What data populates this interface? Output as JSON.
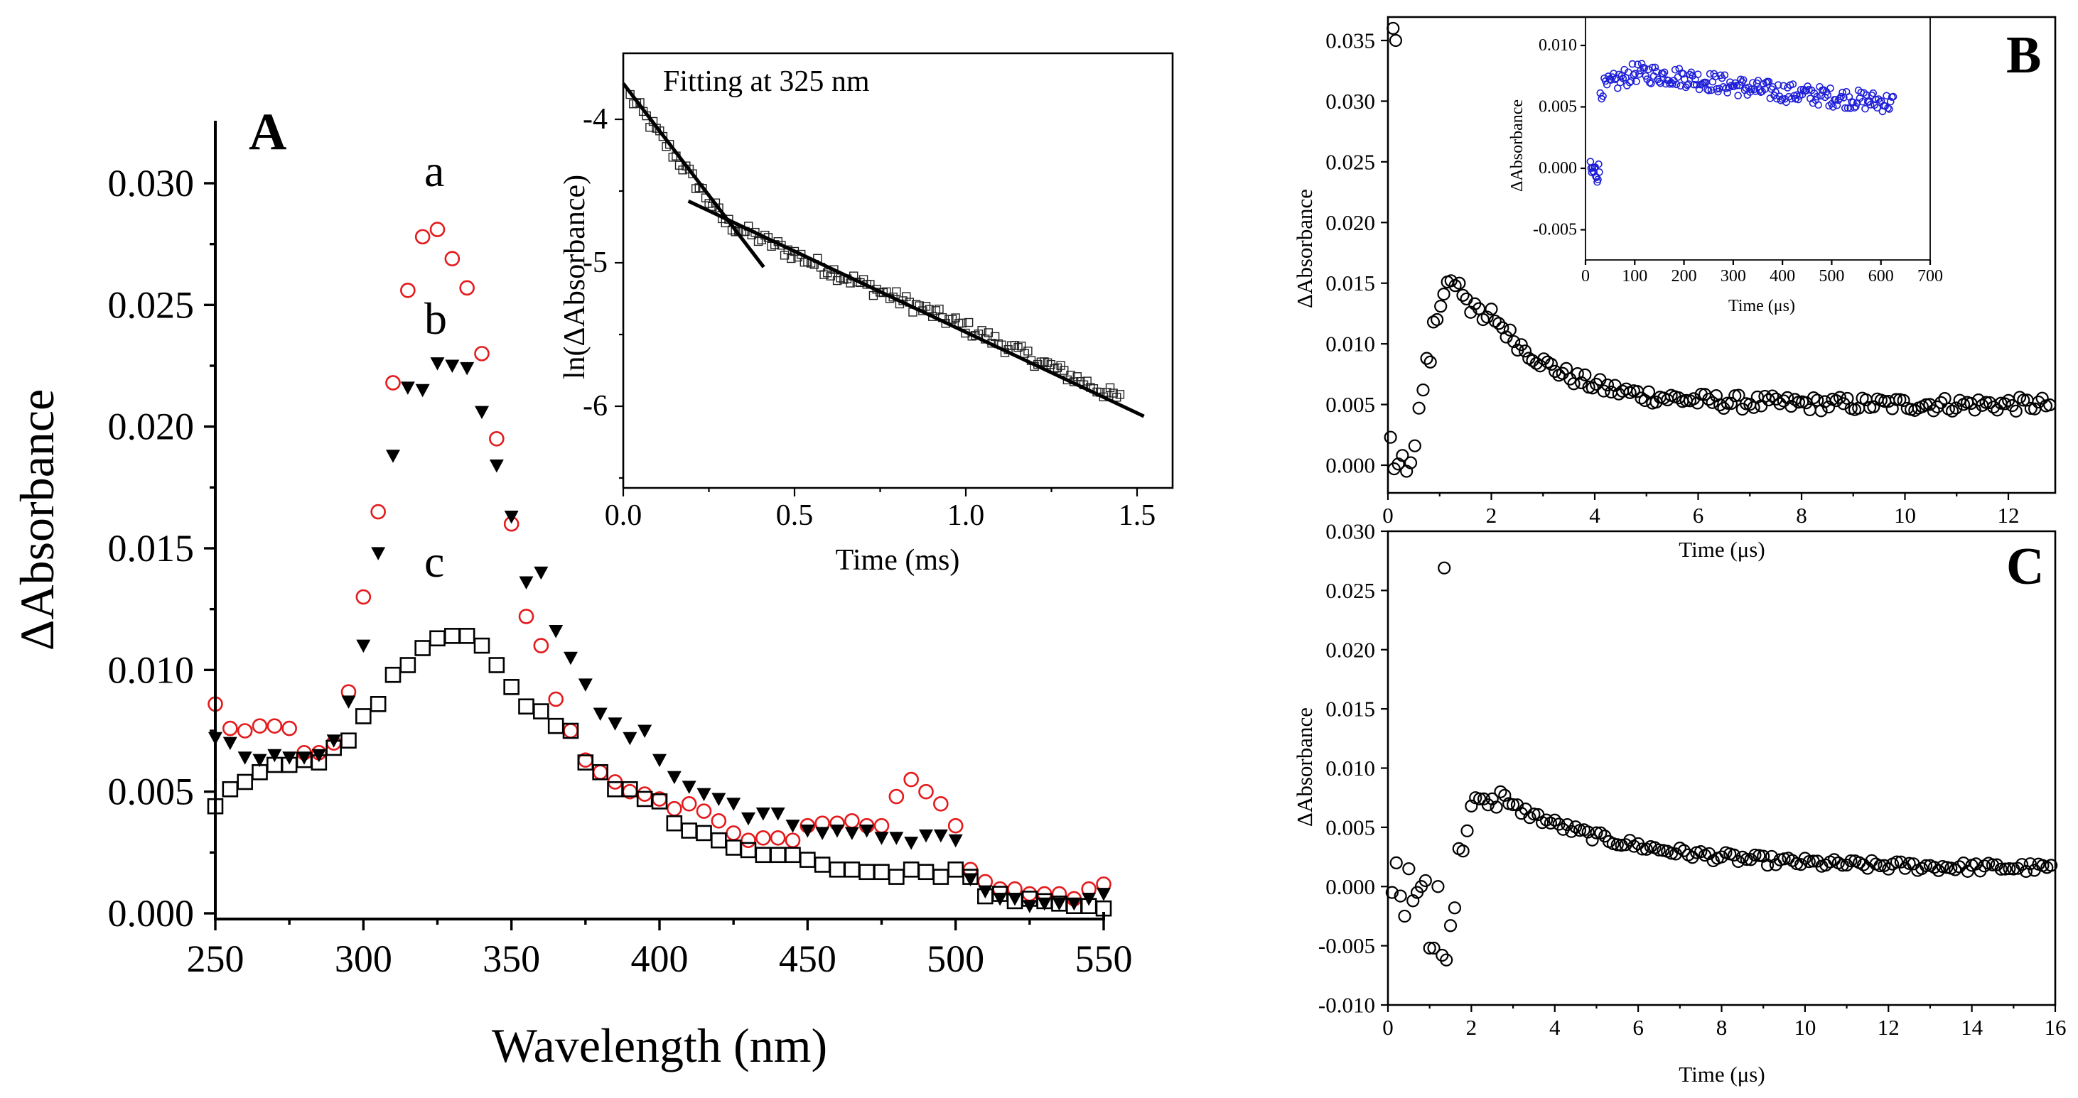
{
  "chart_data": [
    {
      "panel": "A",
      "type": "scatter",
      "xlabel": "Wavelength (nm)",
      "ylabel": "ΔAbsorbance",
      "xlim": [
        250,
        550
      ],
      "ylim": [
        -0.0005,
        0.0325
      ],
      "xticks": [
        250,
        300,
        350,
        400,
        450,
        500,
        550
      ],
      "yticks": [
        0.0,
        0.005,
        0.01,
        0.015,
        0.02,
        0.025,
        0.03
      ],
      "ytick_labels": [
        "0.000",
        "0.005",
        "0.010",
        "0.015",
        "0.020",
        "0.025",
        "0.030"
      ],
      "series": [
        {
          "name": "a",
          "marker": "open-circle",
          "color": "#e41a1c",
          "x": [
            250,
            255,
            260,
            265,
            270,
            275,
            280,
            285,
            290,
            295,
            300,
            305,
            310,
            315,
            320,
            325,
            330,
            335,
            340,
            345,
            350,
            355,
            360,
            365,
            370,
            375,
            380,
            385,
            390,
            395,
            400,
            405,
            410,
            415,
            420,
            425,
            430,
            435,
            440,
            445,
            450,
            455,
            460,
            465,
            470,
            475,
            480,
            485,
            490,
            495,
            500,
            505,
            510,
            515,
            520,
            525,
            530,
            535,
            540,
            545,
            550
          ],
          "y": [
            0.0086,
            0.0076,
            0.0075,
            0.0077,
            0.0077,
            0.0076,
            0.0066,
            0.0066,
            0.007,
            0.0091,
            0.013,
            0.0165,
            0.0218,
            0.0256,
            0.0278,
            0.0281,
            0.0269,
            0.0257,
            0.023,
            0.0195,
            0.016,
            0.0122,
            0.011,
            0.0088,
            0.0075,
            0.0063,
            0.0058,
            0.0054,
            0.005,
            0.0049,
            0.0047,
            0.0043,
            0.0045,
            0.0042,
            0.0038,
            0.0033,
            0.003,
            0.0031,
            0.0031,
            0.003,
            0.0036,
            0.0037,
            0.0037,
            0.0038,
            0.0036,
            0.0036,
            0.0048,
            0.0055,
            0.005,
            0.0045,
            0.0036,
            0.0018,
            0.0013,
            0.001,
            0.001,
            0.0008,
            0.0008,
            0.0008,
            0.0006,
            0.001,
            0.0012
          ]
        },
        {
          "name": "b",
          "marker": "filled-triangle-down",
          "color": "#000000",
          "x": [
            250,
            255,
            260,
            265,
            270,
            275,
            280,
            285,
            290,
            295,
            300,
            305,
            310,
            315,
            320,
            325,
            330,
            335,
            340,
            345,
            350,
            355,
            360,
            365,
            370,
            375,
            380,
            385,
            390,
            395,
            400,
            405,
            410,
            415,
            420,
            425,
            430,
            435,
            440,
            445,
            450,
            455,
            460,
            465,
            470,
            475,
            480,
            485,
            490,
            495,
            500,
            505,
            510,
            515,
            520,
            525,
            530,
            535,
            540,
            545,
            550
          ],
          "y": [
            0.0072,
            0.007,
            0.0064,
            0.0063,
            0.0065,
            0.0064,
            0.0064,
            0.0065,
            0.0071,
            0.0087,
            0.011,
            0.0148,
            0.0188,
            0.0216,
            0.0215,
            0.0226,
            0.0225,
            0.0224,
            0.0206,
            0.0184,
            0.0163,
            0.0136,
            0.014,
            0.0116,
            0.0105,
            0.0094,
            0.0082,
            0.0078,
            0.0072,
            0.0075,
            0.0063,
            0.0056,
            0.0052,
            0.0049,
            0.0047,
            0.0045,
            0.0039,
            0.0041,
            0.0041,
            0.0036,
            0.0034,
            0.0033,
            0.0034,
            0.0033,
            0.0034,
            0.0031,
            0.0031,
            0.0029,
            0.0032,
            0.0032,
            0.003,
            0.0014,
            0.0009,
            0.0006,
            0.0006,
            0.0003,
            0.0004,
            0.0004,
            0.0004,
            0.0006,
            0.0008
          ]
        },
        {
          "name": "c",
          "marker": "open-square",
          "color": "#000000",
          "x": [
            250,
            255,
            260,
            265,
            270,
            275,
            280,
            285,
            290,
            295,
            300,
            305,
            310,
            315,
            320,
            325,
            330,
            335,
            340,
            345,
            350,
            355,
            360,
            365,
            370,
            375,
            380,
            385,
            390,
            395,
            400,
            405,
            410,
            415,
            420,
            425,
            430,
            435,
            440,
            445,
            450,
            455,
            460,
            465,
            470,
            475,
            480,
            485,
            490,
            495,
            500,
            505,
            510,
            515,
            520,
            525,
            530,
            535,
            540,
            545,
            550
          ],
          "y": [
            0.0044,
            0.0051,
            0.0054,
            0.0058,
            0.0061,
            0.0061,
            0.0063,
            0.0062,
            0.0068,
            0.0071,
            0.0081,
            0.0086,
            0.0098,
            0.0102,
            0.0109,
            0.0113,
            0.0114,
            0.0114,
            0.011,
            0.0102,
            0.0093,
            0.0085,
            0.0083,
            0.0077,
            0.0075,
            0.0062,
            0.0058,
            0.0051,
            0.0051,
            0.0047,
            0.0046,
            0.0037,
            0.0034,
            0.0033,
            0.003,
            0.0027,
            0.0026,
            0.0024,
            0.0024,
            0.0024,
            0.0022,
            0.002,
            0.0018,
            0.0018,
            0.0017,
            0.0017,
            0.0015,
            0.0018,
            0.0017,
            0.0015,
            0.0018,
            0.0015,
            0.0007,
            0.0008,
            0.0005,
            0.0006,
            0.0005,
            0.0004,
            0.0003,
            0.0003,
            0.0002
          ]
        }
      ],
      "annotations": [
        "A",
        "a",
        "b",
        "c"
      ],
      "inset": {
        "type": "scatter",
        "title": "Fitting at 325 nm",
        "xlabel": "Time (ms)",
        "ylabel": "ln(ΔAbsorbance)",
        "xlim": [
          0.0,
          1.6
        ],
        "ylim": [
          -6.5,
          -3.5
        ],
        "xticks": [
          0.0,
          0.5,
          1.0,
          1.5
        ],
        "xtick_labels": [
          "0.0",
          "0.5",
          "1.0",
          "1.5"
        ],
        "yticks": [
          -6,
          -5,
          -4
        ],
        "ytick_labels": [
          "-6",
          "-5",
          "-4"
        ],
        "marker": "open-square",
        "data_trend": {
          "x_start": 0.02,
          "x_end": 1.45,
          "y_at": [
            [
              0.0,
              -3.78
            ],
            [
              0.3,
              -4.72
            ],
            [
              0.6,
              -5.05
            ],
            [
              1.0,
              -5.45
            ],
            [
              1.45,
              -5.95
            ]
          ],
          "noise": 0.05,
          "n_points": 150
        },
        "fit_lines": [
          {
            "x": [
              0.0,
              0.41
            ],
            "y": [
              -3.75,
              -5.03
            ]
          },
          {
            "x": [
              0.19,
              1.52
            ],
            "y": [
              -4.57,
              -6.07
            ]
          }
        ]
      }
    },
    {
      "panel": "B",
      "type": "scatter",
      "xlabel": "Time (μs)",
      "ylabel": "ΔAbsorbance",
      "xlim": [
        0,
        12.9
      ],
      "ylim": [
        -0.0008,
        0.0362
      ],
      "xticks": [
        0,
        2,
        4,
        6,
        8,
        10,
        12
      ],
      "xtick_labels": [
        "0",
        "2",
        "4",
        "6",
        "8",
        "10",
        "12"
      ],
      "yticks": [
        0.0,
        0.005,
        0.01,
        0.015,
        0.02,
        0.025,
        0.03,
        0.035
      ],
      "ytick_labels": [
        "0.000",
        "0.005",
        "0.010",
        "0.015",
        "0.020",
        "0.025",
        "0.030",
        "0.035"
      ],
      "marker": "open-circle",
      "outliers": [
        {
          "x": 0.1,
          "y": 0.036
        },
        {
          "x": 0.15,
          "y": 0.035
        }
      ],
      "data_points": [
        [
          0.05,
          0.0023
        ],
        [
          0.12,
          -0.0003
        ],
        [
          0.2,
          0.0001
        ],
        [
          0.28,
          0.0008
        ],
        [
          0.36,
          -0.0005
        ],
        [
          0.44,
          0.0002
        ],
        [
          0.52,
          0.0016
        ],
        [
          0.6,
          0.0047
        ],
        [
          0.68,
          0.0062
        ],
        [
          0.75,
          0.0088
        ],
        [
          0.82,
          0.0085
        ],
        [
          0.88,
          0.0118
        ],
        [
          0.95,
          0.012
        ],
        [
          1.02,
          0.0131
        ],
        [
          1.08,
          0.0141
        ],
        [
          1.15,
          0.0151
        ],
        [
          1.22,
          0.0152
        ],
        [
          1.3,
          0.0148
        ],
        [
          1.38,
          0.015
        ],
        [
          1.45,
          0.014
        ],
        [
          1.52,
          0.0137
        ],
        [
          1.6,
          0.0126
        ],
        [
          1.68,
          0.0133
        ],
        [
          1.76,
          0.0129
        ],
        [
          1.84,
          0.012
        ],
        [
          1.92,
          0.0122
        ]
      ],
      "data_trend": {
        "x_start": 2.0,
        "x_end": 12.8,
        "peak": 0.0125,
        "plateau": 0.005,
        "tau": 1.3,
        "noise": 0.0006,
        "n_points": 150
      },
      "inset": {
        "type": "scatter",
        "xlabel": "Time (μs)",
        "ylabel": "ΔAbsorbance",
        "xlim": [
          0,
          700
        ],
        "ylim": [
          -0.007,
          0.012
        ],
        "xticks": [
          0,
          100,
          200,
          300,
          400,
          500,
          600,
          700
        ],
        "xtick_labels": [
          "0",
          "100",
          "200",
          "300",
          "400",
          "500",
          "600",
          "700"
        ],
        "yticks": [
          -0.005,
          0.0,
          0.005,
          0.01
        ],
        "ytick_labels": [
          "-0.005",
          "0.000",
          "0.005",
          "0.010"
        ],
        "marker": "open-circle",
        "color": "#1f1fd8",
        "pre_trigger": {
          "x_start": 10,
          "x_end": 28,
          "mean": -0.0003,
          "noise": 0.0009,
          "n_points": 14
        },
        "data_trend": {
          "x_start": 30,
          "x_end": 625,
          "y_at": [
            [
              30,
              0.0064
            ],
            [
              100,
              0.0078
            ],
            [
              200,
              0.0074
            ],
            [
              350,
              0.0064
            ],
            [
              500,
              0.0058
            ],
            [
              625,
              0.0053
            ]
          ],
          "noise": 0.0008,
          "n_points": 220
        }
      }
    },
    {
      "panel": "C",
      "type": "scatter",
      "xlabel": "Time (μs)",
      "ylabel": "ΔAbsorbance",
      "xlim": [
        0,
        16
      ],
      "ylim": [
        -0.01,
        0.03
      ],
      "xticks": [
        0,
        2,
        4,
        6,
        8,
        10,
        12,
        14,
        16
      ],
      "xtick_labels": [
        "0",
        "2",
        "4",
        "6",
        "8",
        "10",
        "12",
        "14",
        "16"
      ],
      "yticks": [
        -0.01,
        -0.005,
        0.0,
        0.005,
        0.01,
        0.015,
        0.02,
        0.025,
        0.03
      ],
      "ytick_labels": [
        "-0.010",
        "-0.005",
        "0.000",
        "0.005",
        "0.010",
        "0.015",
        "0.020",
        "0.025",
        "0.030"
      ],
      "marker": "open-circle",
      "outliers": [
        {
          "x": 1.35,
          "y": 0.0269
        }
      ],
      "data_points": [
        [
          0.1,
          -0.0005
        ],
        [
          0.2,
          0.002
        ],
        [
          0.3,
          -0.0008
        ],
        [
          0.4,
          -0.0025
        ],
        [
          0.5,
          0.0015
        ],
        [
          0.6,
          -0.0012
        ],
        [
          0.7,
          -0.0005
        ],
        [
          0.8,
          0.0
        ],
        [
          0.9,
          0.0005
        ],
        [
          1.0,
          -0.0052
        ],
        [
          1.1,
          -0.0052
        ],
        [
          1.2,
          0.0
        ],
        [
          1.3,
          -0.0058
        ],
        [
          1.4,
          -0.0062
        ],
        [
          1.5,
          -0.0033
        ],
        [
          1.6,
          -0.0018
        ],
        [
          1.7,
          0.0032
        ],
        [
          1.8,
          0.003
        ],
        [
          1.9,
          0.0047
        ],
        [
          2.0,
          0.0068
        ],
        [
          2.1,
          0.0075
        ],
        [
          2.2,
          0.0074
        ],
        [
          2.3,
          0.0074
        ],
        [
          2.4,
          0.0069
        ],
        [
          2.5,
          0.0074
        ],
        [
          2.6,
          0.0067
        ],
        [
          2.7,
          0.008
        ],
        [
          2.8,
          0.0077
        ],
        [
          2.9,
          0.007
        ]
      ],
      "data_trend": {
        "x_start": 3.0,
        "x_end": 15.9,
        "peak": 0.0068,
        "plateau": 0.0015,
        "tau": 3.0,
        "noise": 0.0004,
        "n_points": 130
      }
    }
  ]
}
